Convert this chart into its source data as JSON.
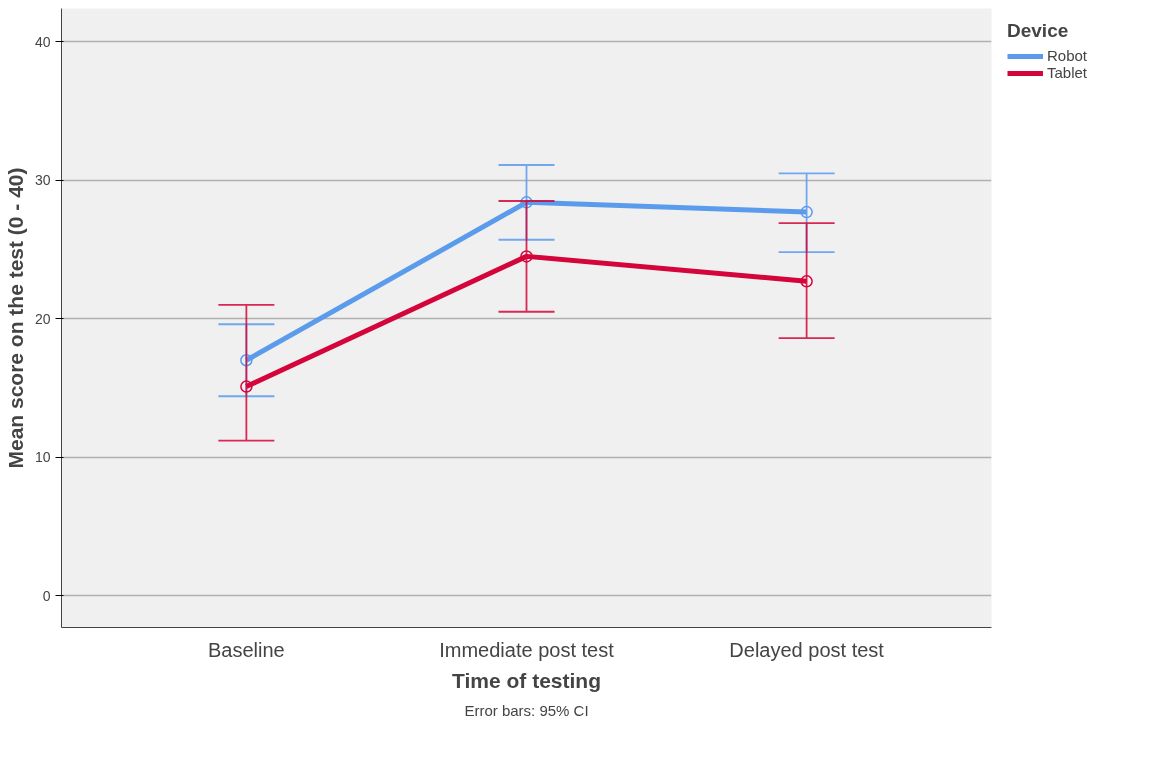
{
  "chart_data": {
    "type": "line",
    "xlabel": "Time of testing",
    "ylabel": "Mean score on the test (0 - 40)",
    "legend_title": "Device",
    "categories": [
      "Baseline",
      "Immediate post test",
      "Delayed post test"
    ],
    "series": [
      {
        "name": "Robot",
        "color": "#5b9bec",
        "values": [
          17.0,
          28.4,
          27.7
        ],
        "errors": [
          [
            14.4,
            19.6
          ],
          [
            25.7,
            31.1
          ],
          [
            24.8,
            30.5
          ]
        ]
      },
      {
        "name": "Tablet",
        "color": "#d4053a",
        "values": [
          15.1,
          24.5,
          22.7
        ],
        "errors": [
          [
            11.2,
            21.0
          ],
          [
            20.5,
            28.5
          ],
          [
            18.6,
            26.9
          ]
        ]
      }
    ],
    "ylim": [
      -2.3,
      42.4
    ],
    "yticks": [
      0,
      10,
      20,
      30,
      40
    ],
    "grid": "y",
    "legend": "top right",
    "marker": "circle",
    "line_style": "solid",
    "annotations": [
      "Error bars: 95% CI"
    ]
  }
}
